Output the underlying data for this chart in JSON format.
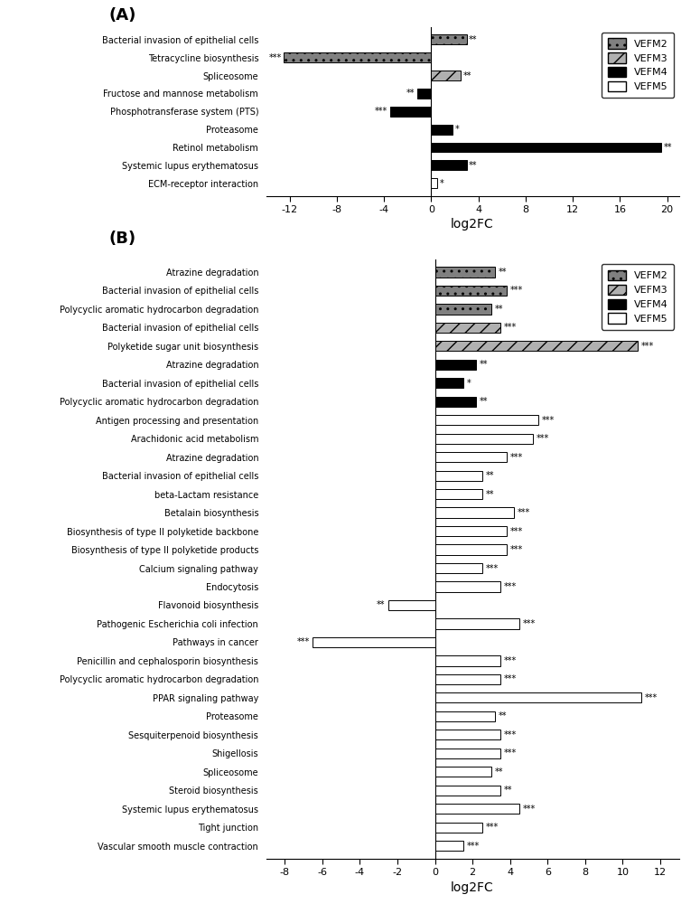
{
  "panel_A": {
    "rows": [
      {
        "label": "Bacterial invasion of epithelial cells",
        "series": "VEFM2",
        "value": 3.0,
        "annot": "**"
      },
      {
        "label": "Tetracycline biosynthesis",
        "series": "VEFM2",
        "value": -12.5,
        "annot": "***"
      },
      {
        "label": "Spliceosome",
        "series": "VEFM3",
        "value": 2.5,
        "annot": "**"
      },
      {
        "label": "Fructose and mannose metabolism",
        "series": "VEFM4",
        "value": -1.2,
        "annot": "**"
      },
      {
        "label": "Phosphotransferase system (PTS)",
        "series": "VEFM4",
        "value": -3.5,
        "annot": "***"
      },
      {
        "label": "Proteasome",
        "series": "VEFM4",
        "value": 1.8,
        "annot": "*"
      },
      {
        "label": "Retinol metabolism",
        "series": "VEFM4",
        "value": 19.5,
        "annot": "**"
      },
      {
        "label": "Systemic lupus erythematosus",
        "series": "VEFM4",
        "value": 3.0,
        "annot": "**"
      },
      {
        "label": "ECM-receptor interaction",
        "series": "VEFM5",
        "value": 0.5,
        "annot": "*"
      }
    ],
    "xlim": [
      -14,
      21
    ],
    "xticks": [
      -12,
      -8,
      -4,
      0,
      4,
      8,
      12,
      16,
      20
    ],
    "xlabel": "log2FC"
  },
  "panel_B": {
    "rows": [
      {
        "label": "Atrazine degradation",
        "series": "VEFM2",
        "value": 3.2,
        "annot": "**"
      },
      {
        "label": "Bacterial invasion of epithelial cells",
        "series": "VEFM2",
        "value": 3.8,
        "annot": "***"
      },
      {
        "label": "Polycyclic aromatic hydrocarbon degradation",
        "series": "VEFM2",
        "value": 3.0,
        "annot": "**"
      },
      {
        "label": "Bacterial invasion of epithelial cells",
        "series": "VEFM3",
        "value": 3.5,
        "annot": "***"
      },
      {
        "label": "Polyketide sugar unit biosynthesis",
        "series": "VEFM3",
        "value": 10.8,
        "annot": "***"
      },
      {
        "label": "Atrazine degradation",
        "series": "VEFM4",
        "value": 2.2,
        "annot": "**"
      },
      {
        "label": "Bacterial invasion of epithelial cells",
        "series": "VEFM4",
        "value": 1.5,
        "annot": "*"
      },
      {
        "label": "Polycyclic aromatic hydrocarbon degradation",
        "series": "VEFM4",
        "value": 2.2,
        "annot": "**"
      },
      {
        "label": "Antigen processing and presentation",
        "series": "VEFM5",
        "value": 5.5,
        "annot": "***"
      },
      {
        "label": "Arachidonic acid metabolism",
        "series": "VEFM5",
        "value": 5.2,
        "annot": "***"
      },
      {
        "label": "Atrazine degradation",
        "series": "VEFM5",
        "value": 3.8,
        "annot": "***"
      },
      {
        "label": "Bacterial invasion of epithelial cells",
        "series": "VEFM5",
        "value": 2.5,
        "annot": "**"
      },
      {
        "label": "beta-Lactam resistance",
        "series": "VEFM5",
        "value": 2.5,
        "annot": "**"
      },
      {
        "label": "Betalain biosynthesis",
        "series": "VEFM5",
        "value": 4.2,
        "annot": "***"
      },
      {
        "label": "Biosynthesis of type II polyketide backbone",
        "series": "VEFM5",
        "value": 3.8,
        "annot": "***"
      },
      {
        "label": "Biosynthesis of type II polyketide products",
        "series": "VEFM5",
        "value": 3.8,
        "annot": "***"
      },
      {
        "label": "Calcium signaling pathway",
        "series": "VEFM5",
        "value": 2.5,
        "annot": "***"
      },
      {
        "label": "Endocytosis",
        "series": "VEFM5",
        "value": 3.5,
        "annot": "***"
      },
      {
        "label": "Flavonoid biosynthesis",
        "series": "VEFM5",
        "value": -2.5,
        "annot": "**"
      },
      {
        "label": "Pathogenic Escherichia coli infection",
        "series": "VEFM5",
        "value": 4.5,
        "annot": "***"
      },
      {
        "label": "Pathways in cancer",
        "series": "VEFM5",
        "value": -6.5,
        "annot": "***"
      },
      {
        "label": "Penicillin and cephalosporin biosynthesis",
        "series": "VEFM5",
        "value": 3.5,
        "annot": "***"
      },
      {
        "label": "Polycyclic aromatic hydrocarbon degradation",
        "series": "VEFM5",
        "value": 3.5,
        "annot": "***"
      },
      {
        "label": "PPAR signaling pathway",
        "series": "VEFM5",
        "value": 11.0,
        "annot": "***"
      },
      {
        "label": "Proteasome",
        "series": "VEFM5",
        "value": 3.2,
        "annot": "**"
      },
      {
        "label": "Sesquiterpenoid biosynthesis",
        "series": "VEFM5",
        "value": 3.5,
        "annot": "***"
      },
      {
        "label": "Shigellosis",
        "series": "VEFM5",
        "value": 3.5,
        "annot": "***"
      },
      {
        "label": "Spliceosome",
        "series": "VEFM5",
        "value": 3.0,
        "annot": "**"
      },
      {
        "label": "Steroid biosynthesis",
        "series": "VEFM5",
        "value": 3.5,
        "annot": "**"
      },
      {
        "label": "Systemic lupus erythematosus",
        "series": "VEFM5",
        "value": 4.5,
        "annot": "***"
      },
      {
        "label": "Tight junction",
        "series": "VEFM5",
        "value": 2.5,
        "annot": "***"
      },
      {
        "label": "Vascular smooth muscle contraction",
        "series": "VEFM5",
        "value": 1.5,
        "annot": "***"
      }
    ],
    "xlim": [
      -9,
      13
    ],
    "xticks": [
      -8,
      -6,
      -4,
      -2,
      0,
      2,
      4,
      6,
      8,
      10,
      12
    ],
    "xlabel": "log2FC"
  },
  "colors": {
    "VEFM2": "#808080",
    "VEFM3": "#b0b0b0",
    "VEFM4": "#000000",
    "VEFM5": "#ffffff"
  },
  "hatches": {
    "VEFM2": "..",
    "VEFM3": "//",
    "VEFM4": "",
    "VEFM5": ""
  },
  "edge_colors": {
    "VEFM2": "#404040",
    "VEFM3": "#404040",
    "VEFM4": "#000000",
    "VEFM5": "#000000"
  }
}
